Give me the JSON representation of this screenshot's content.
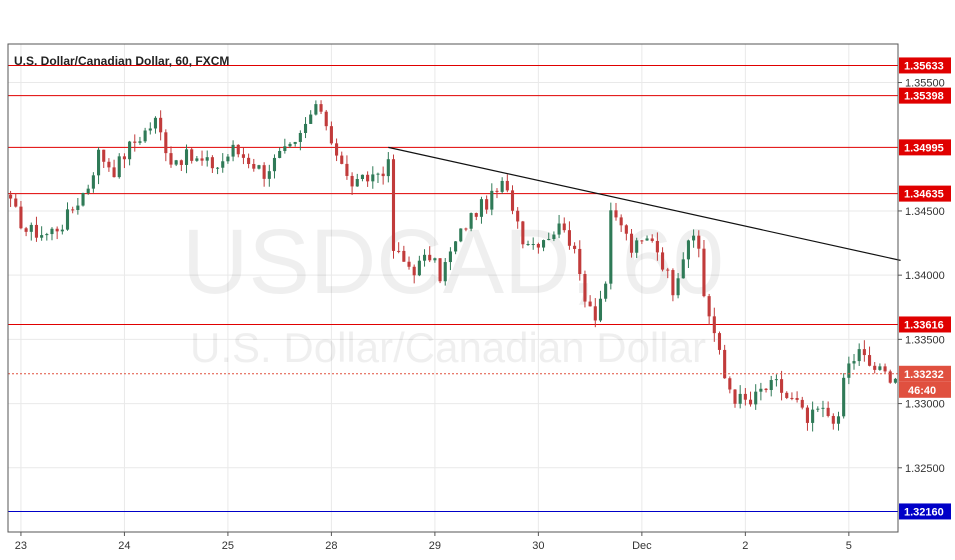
{
  "chart_data": {
    "type": "candlestick",
    "title": "U.S. Dollar/Canadian Dollar, 60, FXCM",
    "watermark_symbol": "USDCAD, 60",
    "watermark_name": "U.S. Dollar/Canadian Dollar",
    "ylim": [
      1.32,
      1.358
    ],
    "y_ticks": [
      1.355,
      1.345,
      1.34,
      1.335,
      1.33,
      1.325
    ],
    "x_ticks": [
      {
        "label": "23",
        "index": 2
      },
      {
        "label": "24",
        "index": 22
      },
      {
        "label": "25",
        "index": 42
      },
      {
        "label": "28",
        "index": 62
      },
      {
        "label": "29",
        "index": 82
      },
      {
        "label": "30",
        "index": 102
      },
      {
        "label": "Dec",
        "index": 122
      },
      {
        "label": "2",
        "index": 142
      },
      {
        "label": "5",
        "index": 162
      }
    ],
    "grid": true,
    "horizontal_lines": [
      {
        "value": 1.35633,
        "label": "1.35633",
        "color": "#e00000"
      },
      {
        "value": 1.35398,
        "label": "1.35398",
        "color": "#e00000"
      },
      {
        "value": 1.34995,
        "label": "1.34995",
        "color": "#e00000"
      },
      {
        "value": 1.34635,
        "label": "1.34635",
        "color": "#e00000"
      },
      {
        "value": 1.33616,
        "label": "1.33616",
        "color": "#e00000"
      },
      {
        "value": 1.3216,
        "label": "1.32160",
        "color": "#0000c8"
      }
    ],
    "current_price": {
      "value": 1.33232,
      "label": "1.33232",
      "countdown": "46:40",
      "color": "#e0503f"
    },
    "trendline": [
      {
        "index": 73,
        "value": 1.34995
      },
      {
        "index": 172,
        "value": 1.34115
      }
    ],
    "up_color": "#2f7a57",
    "down_color": "#c13b3b",
    "anchors": [
      [
        0,
        1.3455
      ],
      [
        3,
        1.3435
      ],
      [
        7,
        1.3432
      ],
      [
        10,
        1.344
      ],
      [
        12,
        1.3452
      ],
      [
        15,
        1.347
      ],
      [
        17,
        1.3495
      ],
      [
        20,
        1.3482
      ],
      [
        23,
        1.35
      ],
      [
        26,
        1.3512
      ],
      [
        28,
        1.352
      ],
      [
        31,
        1.349
      ],
      [
        34,
        1.3492
      ],
      [
        37,
        1.3488
      ],
      [
        40,
        1.3485
      ],
      [
        43,
        1.3498
      ],
      [
        46,
        1.349
      ],
      [
        49,
        1.348
      ],
      [
        52,
        1.3493
      ],
      [
        55,
        1.35
      ],
      [
        58,
        1.3525
      ],
      [
        60,
        1.353
      ],
      [
        63,
        1.3495
      ],
      [
        65,
        1.3475
      ],
      [
        67,
        1.347
      ],
      [
        70,
        1.3478
      ],
      [
        73,
        1.3485
      ],
      [
        74,
        1.342
      ],
      [
        76,
        1.341
      ],
      [
        78,
        1.3405
      ],
      [
        81,
        1.3415
      ],
      [
        83,
        1.34
      ],
      [
        86,
        1.3425
      ],
      [
        88,
        1.344
      ],
      [
        90,
        1.345
      ],
      [
        93,
        1.346
      ],
      [
        95,
        1.347
      ],
      [
        97,
        1.3455
      ],
      [
        99,
        1.343
      ],
      [
        101,
        1.3425
      ],
      [
        104,
        1.3432
      ],
      [
        107,
        1.344
      ],
      [
        109,
        1.3415
      ],
      [
        111,
        1.3385
      ],
      [
        113,
        1.337
      ],
      [
        115,
        1.3395
      ],
      [
        116,
        1.3445
      ],
      [
        118,
        1.344
      ],
      [
        120,
        1.342
      ],
      [
        122,
        1.3425
      ],
      [
        124,
        1.343
      ],
      [
        126,
        1.341
      ],
      [
        128,
        1.339
      ],
      [
        131,
        1.343
      ],
      [
        133,
        1.342
      ],
      [
        134,
        1.3385
      ],
      [
        136,
        1.3355
      ],
      [
        138,
        1.332
      ],
      [
        140,
        1.3305
      ],
      [
        143,
        1.33
      ],
      [
        145,
        1.331
      ],
      [
        148,
        1.3315
      ],
      [
        150,
        1.3305
      ],
      [
        152,
        1.33
      ],
      [
        154,
        1.3285
      ],
      [
        156,
        1.3295
      ],
      [
        159,
        1.329
      ],
      [
        160,
        1.3285
      ],
      [
        161,
        1.332
      ],
      [
        162,
        1.333
      ],
      [
        164,
        1.334
      ],
      [
        166,
        1.333
      ],
      [
        168,
        1.3325
      ],
      [
        169,
        1.3323
      ]
    ]
  }
}
